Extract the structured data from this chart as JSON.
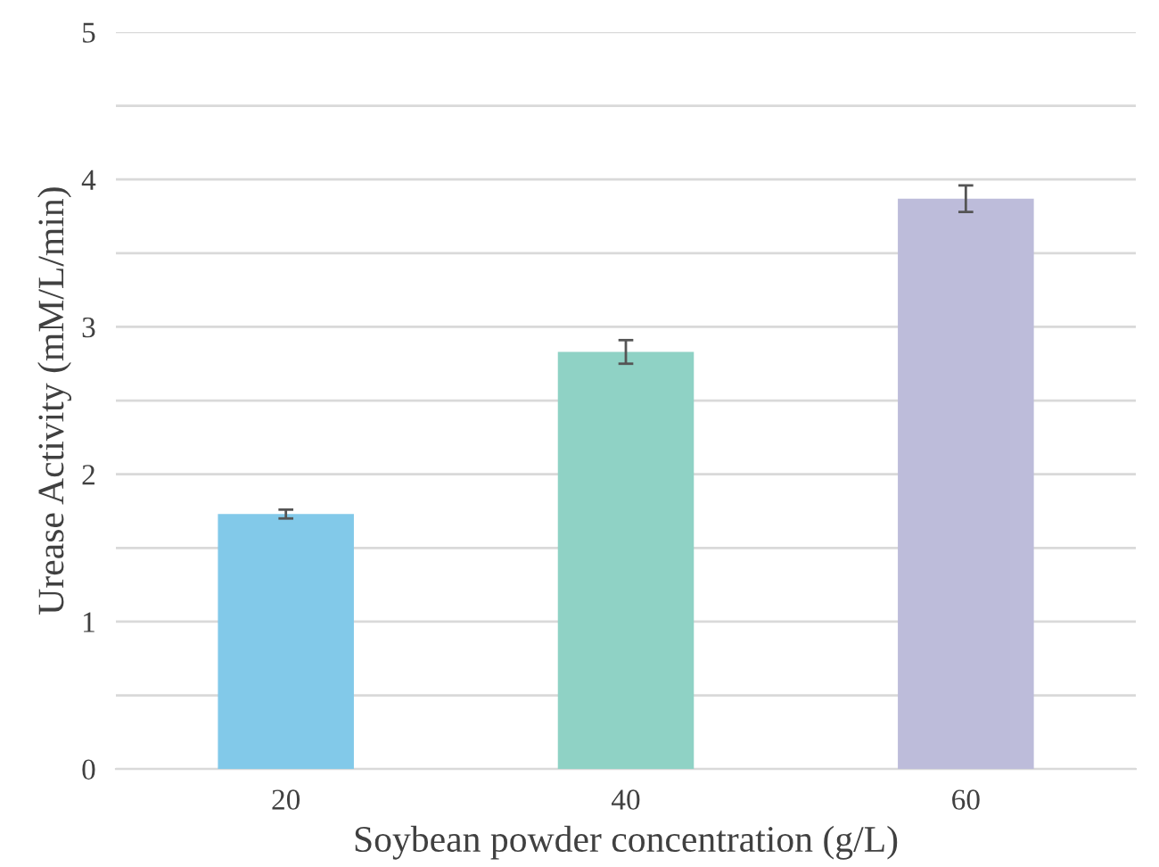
{
  "chart_data": {
    "type": "bar",
    "xlabel": "Soybean powder concentration (g/L)",
    "ylabel": "Urease Activity (mM/L/min)",
    "categories": [
      "20",
      "40",
      "60"
    ],
    "values": [
      1.73,
      2.83,
      3.87
    ],
    "errors": [
      0.03,
      0.08,
      0.09
    ],
    "colors": [
      "#82c9e9",
      "#8fd2c5",
      "#bdbcda"
    ],
    "ylim": [
      0,
      5
    ],
    "yticks": [
      0,
      {
        "value": 0.5,
        "label": null
      },
      1,
      {
        "value": 1.5,
        "label": null
      },
      2,
      {
        "value": 2.5,
        "label": null
      },
      3,
      {
        "value": 3.5,
        "label": null
      },
      4,
      {
        "value": 4.5,
        "label": null
      },
      5
    ],
    "grid": "y"
  }
}
